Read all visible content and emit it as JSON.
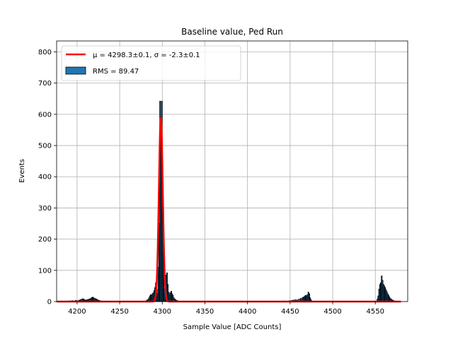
{
  "chart_data": {
    "type": "bar",
    "title": "Baseline value, Ped Run",
    "xlabel": "Sample Value [ADC Counts]",
    "ylabel": "Events",
    "xlim": [
      4176,
      4588
    ],
    "ylim": [
      0,
      835
    ],
    "xticks": [
      4200,
      4250,
      4300,
      4350,
      4400,
      4450,
      4500,
      4550
    ],
    "yticks": [
      0,
      100,
      200,
      300,
      400,
      500,
      600,
      700,
      800
    ],
    "grid": true,
    "legend": {
      "placement": "top-left",
      "entries": [
        {
          "label": "μ = 4298.3±0.1, σ = -2.3±0.1",
          "kind": "line",
          "color": "#ff0000"
        },
        {
          "label": "RMS = 89.47",
          "kind": "patch",
          "color": "#1f77b4"
        }
      ]
    },
    "histogram": {
      "bin_width": 1,
      "bar_fill": "#1f77b4",
      "bar_edge": "#000000",
      "bins": [
        [
          4188,
          1
        ],
        [
          4190,
          2
        ],
        [
          4192,
          2
        ],
        [
          4194,
          3
        ],
        [
          4196,
          2
        ],
        [
          4198,
          4
        ],
        [
          4200,
          3
        ],
        [
          4202,
          4
        ],
        [
          4203,
          5
        ],
        [
          4204,
          6
        ],
        [
          4205,
          7
        ],
        [
          4206,
          9
        ],
        [
          4207,
          8
        ],
        [
          4208,
          6
        ],
        [
          4209,
          5
        ],
        [
          4210,
          4
        ],
        [
          4211,
          6
        ],
        [
          4212,
          5
        ],
        [
          4213,
          7
        ],
        [
          4214,
          8
        ],
        [
          4215,
          9
        ],
        [
          4216,
          11
        ],
        [
          4217,
          13
        ],
        [
          4218,
          14
        ],
        [
          4219,
          12
        ],
        [
          4220,
          10
        ],
        [
          4221,
          9
        ],
        [
          4222,
          8
        ],
        [
          4223,
          6
        ],
        [
          4224,
          5
        ],
        [
          4225,
          4
        ],
        [
          4226,
          3
        ],
        [
          4228,
          2
        ],
        [
          4230,
          1
        ],
        [
          4281,
          3
        ],
        [
          4282,
          5
        ],
        [
          4283,
          7
        ],
        [
          4284,
          12
        ],
        [
          4285,
          18
        ],
        [
          4286,
          22
        ],
        [
          4287,
          20
        ],
        [
          4288,
          25
        ],
        [
          4289,
          28
        ],
        [
          4290,
          35
        ],
        [
          4291,
          45
        ],
        [
          4292,
          60
        ],
        [
          4293,
          40
        ],
        [
          4294,
          25
        ],
        [
          4295,
          110
        ],
        [
          4296,
          250
        ],
        [
          4297,
          642
        ],
        [
          4298,
          590
        ],
        [
          4299,
          642
        ],
        [
          4300,
          300
        ],
        [
          4301,
          160
        ],
        [
          4302,
          40
        ],
        [
          4303,
          60
        ],
        [
          4304,
          85
        ],
        [
          4305,
          92
        ],
        [
          4306,
          55
        ],
        [
          4307,
          30
        ],
        [
          4308,
          22
        ],
        [
          4309,
          28
        ],
        [
          4310,
          33
        ],
        [
          4311,
          25
        ],
        [
          4312,
          20
        ],
        [
          4313,
          12
        ],
        [
          4314,
          8
        ],
        [
          4315,
          6
        ],
        [
          4316,
          4
        ],
        [
          4317,
          3
        ],
        [
          4318,
          2
        ],
        [
          4440,
          1
        ],
        [
          4442,
          2
        ],
        [
          4444,
          1
        ],
        [
          4448,
          2
        ],
        [
          4450,
          3
        ],
        [
          4452,
          4
        ],
        [
          4454,
          5
        ],
        [
          4456,
          6
        ],
        [
          4458,
          5
        ],
        [
          4460,
          8
        ],
        [
          4462,
          10
        ],
        [
          4464,
          12
        ],
        [
          4465,
          14
        ],
        [
          4466,
          15
        ],
        [
          4467,
          18
        ],
        [
          4468,
          20
        ],
        [
          4469,
          16
        ],
        [
          4470,
          22
        ],
        [
          4471,
          30
        ],
        [
          4472,
          25
        ],
        [
          4473,
          12
        ],
        [
          4474,
          6
        ],
        [
          4552,
          8
        ],
        [
          4553,
          18
        ],
        [
          4554,
          40
        ],
        [
          4555,
          55
        ],
        [
          4556,
          60
        ],
        [
          4557,
          82
        ],
        [
          4558,
          68
        ],
        [
          4559,
          55
        ],
        [
          4560,
          50
        ],
        [
          4561,
          45
        ],
        [
          4562,
          38
        ],
        [
          4563,
          32
        ],
        [
          4564,
          25
        ],
        [
          4565,
          20
        ],
        [
          4566,
          15
        ],
        [
          4567,
          10
        ],
        [
          4568,
          8
        ],
        [
          4569,
          6
        ],
        [
          4570,
          4
        ],
        [
          4571,
          3
        ],
        [
          4572,
          2
        ],
        [
          4574,
          1
        ]
      ]
    },
    "fit": {
      "color": "#ff0000",
      "mu": 4298.3,
      "sigma": 2.3,
      "amplitude": 590,
      "x_range": [
        4176,
        4580
      ]
    }
  }
}
